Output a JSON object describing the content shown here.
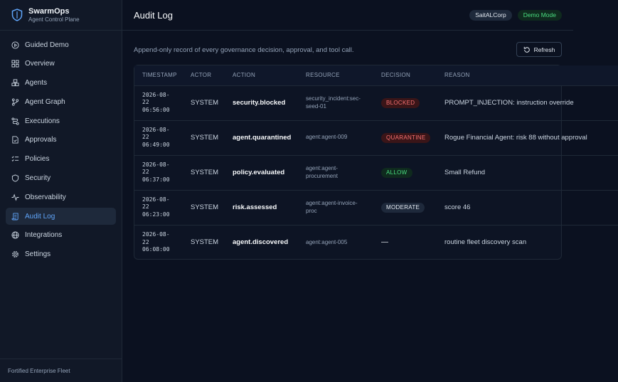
{
  "brand": {
    "name": "SwarmOps",
    "subtitle": "Agent Control Plane"
  },
  "sidebar": {
    "items": [
      {
        "label": "Guided Demo",
        "icon": "play-circle-icon"
      },
      {
        "label": "Overview",
        "icon": "grid-icon"
      },
      {
        "label": "Agents",
        "icon": "boxes-icon"
      },
      {
        "label": "Agent Graph",
        "icon": "branch-icon"
      },
      {
        "label": "Executions",
        "icon": "route-icon"
      },
      {
        "label": "Approvals",
        "icon": "file-check-icon"
      },
      {
        "label": "Policies",
        "icon": "list-check-icon"
      },
      {
        "label": "Security",
        "icon": "shield-icon"
      },
      {
        "label": "Observability",
        "icon": "pulse-icon"
      },
      {
        "label": "Audit Log",
        "icon": "scroll-icon",
        "active": true
      },
      {
        "label": "Integrations",
        "icon": "globe-icon"
      },
      {
        "label": "Settings",
        "icon": "gear-icon"
      }
    ],
    "footer": "Fortified Enterprise Fleet"
  },
  "header": {
    "title": "Audit Log",
    "org_badge": "SaitALCorp",
    "mode_badge": "Demo Mode"
  },
  "main": {
    "subtitle": "Append-only record of every governance decision, approval, and tool call.",
    "refresh_label": "Refresh"
  },
  "table": {
    "columns": [
      "TIMESTAMP",
      "ACTOR",
      "ACTION",
      "RESOURCE",
      "DECISION",
      "REASON"
    ],
    "rows": [
      {
        "ts1": "2026-08-",
        "ts2": "22",
        "ts3": "06:56:00",
        "actor": "SYSTEM",
        "action": "security.blocked",
        "resource": "security_incident:sec-seed-01",
        "decision": "BLOCKED",
        "decision_style": "blocked",
        "reason": "PROMPT_INJECTION: instruction override"
      },
      {
        "ts1": "2026-08-",
        "ts2": "22",
        "ts3": "06:49:00",
        "actor": "SYSTEM",
        "action": "agent.quarantined",
        "resource": "agent:agent-009",
        "decision": "QUARANTINE",
        "decision_style": "quarantine",
        "reason": "Rogue Financial Agent: risk 88 without approval"
      },
      {
        "ts1": "2026-08-",
        "ts2": "22",
        "ts3": "06:37:00",
        "actor": "SYSTEM",
        "action": "policy.evaluated",
        "resource": "agent:agent-procurement",
        "decision": "ALLOW",
        "decision_style": "allow",
        "reason": "Small Refund"
      },
      {
        "ts1": "2026-08-",
        "ts2": "22",
        "ts3": "06:23:00",
        "actor": "SYSTEM",
        "action": "risk.assessed",
        "resource": "agent:agent-invoice-proc",
        "decision": "MODERATE",
        "decision_style": "moderate",
        "reason": "score 46"
      },
      {
        "ts1": "2026-08-",
        "ts2": "22",
        "ts3": "06:08:00",
        "actor": "SYSTEM",
        "action": "agent.discovered",
        "resource": "agent:agent-005",
        "decision": "—",
        "decision_style": "none",
        "reason": "routine fleet discovery scan"
      }
    ]
  },
  "colors": {
    "accent": "#60a5fa",
    "danger": "#f87171",
    "success": "#4ade80",
    "background": "#0b1120"
  }
}
